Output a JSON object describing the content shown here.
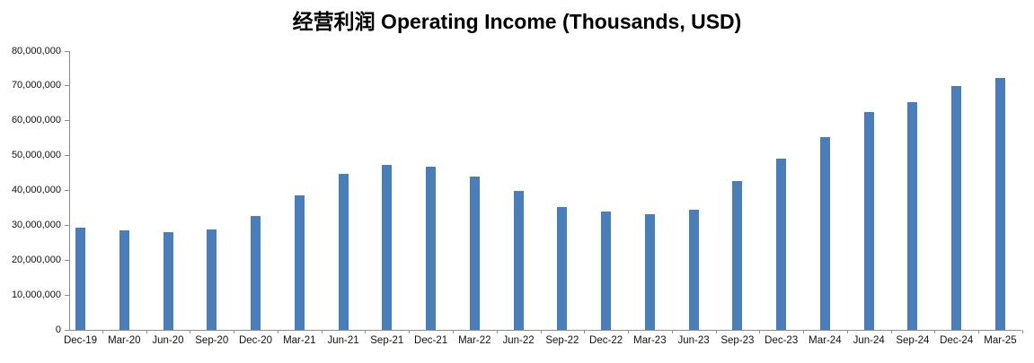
{
  "chart_data": {
    "type": "bar",
    "title": "经营利润 Operating Income (Thousands, USD)",
    "categories": [
      "Dec-19",
      "Mar-20",
      "Jun-20",
      "Sep-20",
      "Dec-20",
      "Mar-21",
      "Jun-21",
      "Sep-21",
      "Dec-21",
      "Mar-22",
      "Jun-22",
      "Sep-22",
      "Dec-22",
      "Mar-23",
      "Jun-23",
      "Sep-23",
      "Dec-23",
      "Mar-24",
      "Jun-24",
      "Sep-24",
      "Dec-24",
      "Mar-25"
    ],
    "values": [
      29300000,
      28600000,
      28000000,
      28900000,
      32700000,
      38600000,
      44800000,
      47300000,
      46800000,
      44000000,
      39900000,
      35200000,
      33900000,
      33200000,
      34400000,
      42700000,
      49100000,
      55300000,
      62600000,
      65300000,
      70000000,
      72300000
    ],
    "xlabel": "",
    "ylabel": "",
    "ylim": [
      0,
      80000000
    ],
    "ytick_interval": 10000000,
    "ytick_labels": [
      "0",
      "10,000,000",
      "20,000,000",
      "30,000,000",
      "40,000,000",
      "50,000,000",
      "60,000,000",
      "70,000,000",
      "80,000,000"
    ],
    "grid": false,
    "legend": "none",
    "bar_color": "#4A7EBB",
    "axis_color": "#8C8C8C",
    "text_color": "#111111"
  }
}
